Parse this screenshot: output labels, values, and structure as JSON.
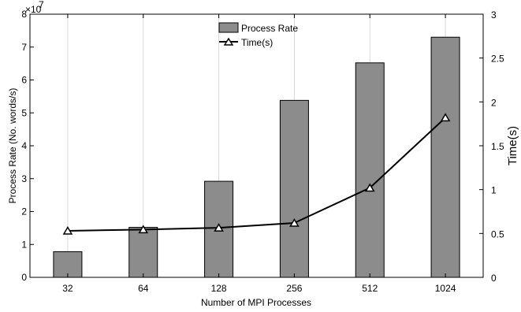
{
  "chart_data": {
    "type": "bar",
    "title": "",
    "xlabel": "Number of MPI Processes",
    "ylabel": "Process Rate (No. words/s)",
    "y2label": "Time(s)",
    "categories": [
      "32",
      "64",
      "128",
      "256",
      "512",
      "1024"
    ],
    "ylim": [
      0,
      80000000
    ],
    "y_exponent_label": "×10",
    "y_exponent_power": "7",
    "y_ticks": [
      "0",
      "1",
      "2",
      "3",
      "4",
      "5",
      "6",
      "7",
      "8"
    ],
    "y2lim": [
      0,
      3
    ],
    "y2_ticks": [
      "0",
      "0.5",
      "1",
      "1.5",
      "2",
      "2.5",
      "3"
    ],
    "series": [
      {
        "name": "Process Rate",
        "type": "bar",
        "axis": "left",
        "color": "#8c8c8c",
        "values": [
          7800000,
          15200000,
          29200000,
          53800000,
          65200000,
          73000000
        ]
      },
      {
        "name": "Time(s)",
        "type": "line",
        "axis": "right",
        "color": "#000000",
        "marker": "triangle",
        "values": [
          0.53,
          0.545,
          0.565,
          0.62,
          1.02,
          1.82
        ]
      }
    ],
    "grid": "vertical",
    "legend": "top-center"
  }
}
